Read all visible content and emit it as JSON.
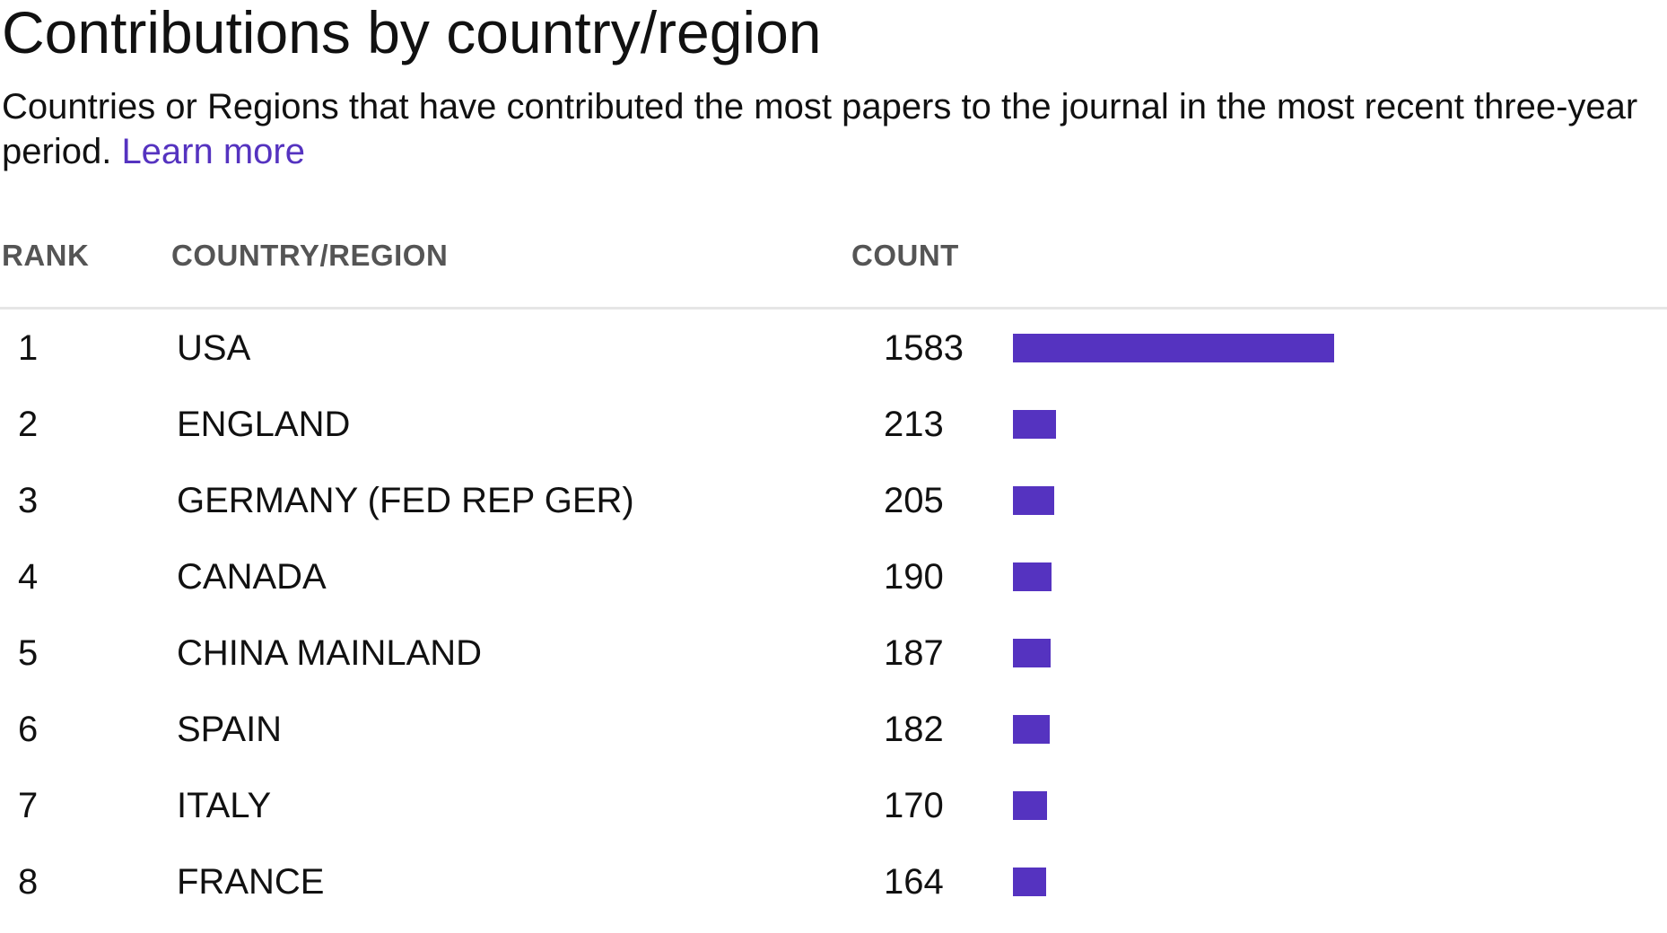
{
  "page": {
    "title": "Contributions by country/region",
    "subtitle": "Countries or Regions that have contributed the most papers to the journal in the most recent three-year period.",
    "learn_more": "Learn more"
  },
  "table": {
    "columns": {
      "rank": "RANK",
      "country": "COUNTRY/REGION",
      "count": "COUNT"
    },
    "bar_color": "#5533c0",
    "max_count": 1583,
    "rows": [
      {
        "rank": "1",
        "country": "USA",
        "count": "1583",
        "value": 1583
      },
      {
        "rank": "2",
        "country": "ENGLAND",
        "count": "213",
        "value": 213
      },
      {
        "rank": "3",
        "country": "GERMANY (FED REP GER)",
        "count": "205",
        "value": 205
      },
      {
        "rank": "4",
        "country": "CANADA",
        "count": "190",
        "value": 190
      },
      {
        "rank": "5",
        "country": "CHINA MAINLAND",
        "count": "187",
        "value": 187
      },
      {
        "rank": "6",
        "country": "SPAIN",
        "count": "182",
        "value": 182
      },
      {
        "rank": "7",
        "country": "ITALY",
        "count": "170",
        "value": 170
      },
      {
        "rank": "8",
        "country": "FRANCE",
        "count": "164",
        "value": 164
      }
    ]
  }
}
